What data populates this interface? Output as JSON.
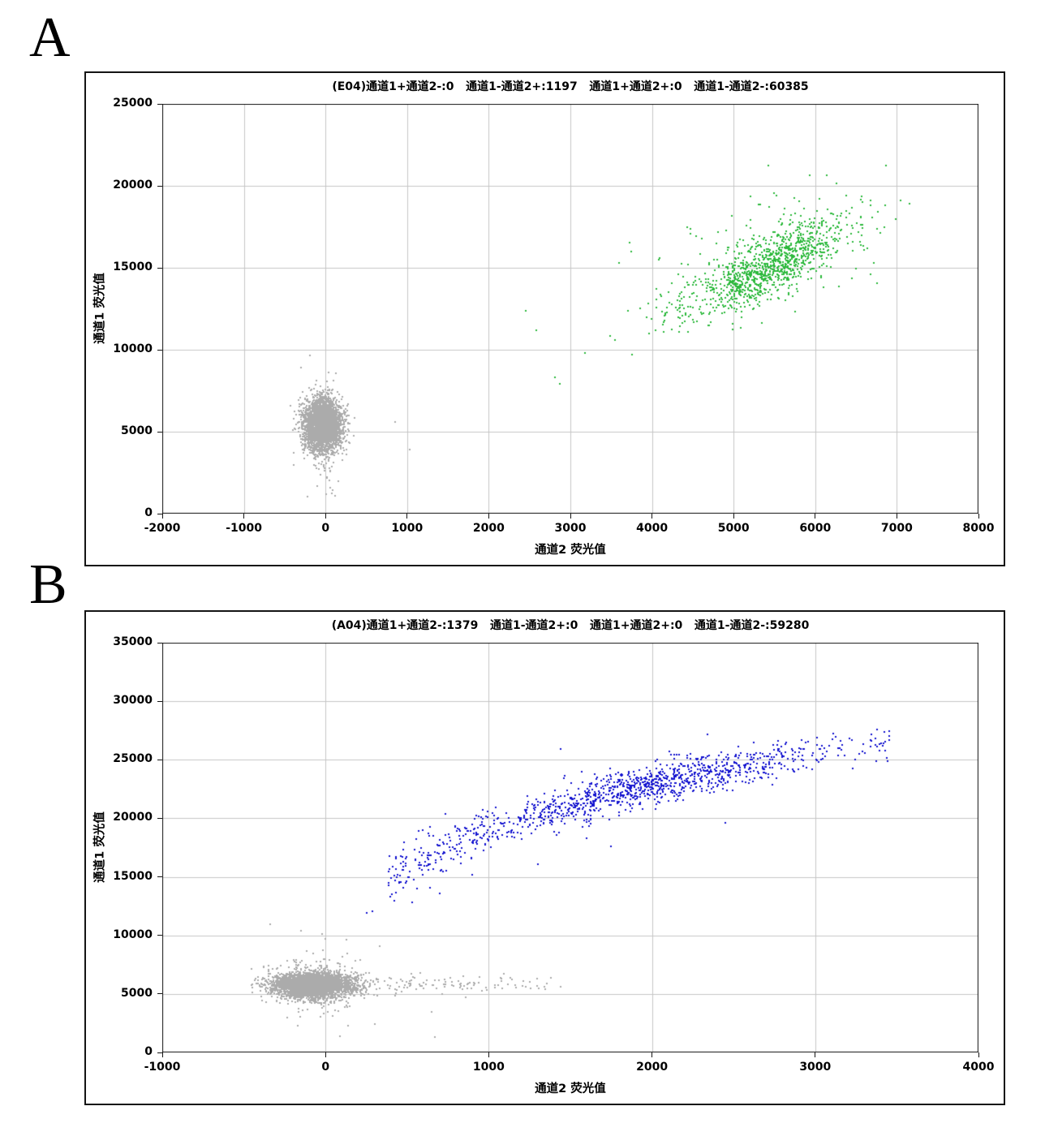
{
  "figure": {
    "background": "#ffffff",
    "panels": [
      {
        "letter": "A"
      },
      {
        "letter": "B"
      }
    ]
  },
  "style": {
    "grid_color": "#c6c6c6",
    "axis_color": "#141414",
    "palette": {
      "gray": "#ababab",
      "green": "#2cb93c",
      "blue": "#1212cf"
    }
  },
  "chart_data": [
    {
      "panel": "A",
      "type": "scatter",
      "title": "(E04)通道1+通道2-:0   通道1-通道2+:1197   通道1+通道2+:0   通道1-通道2-:60385",
      "xlabel": "通道2 荧光值",
      "ylabel": "通道1 荧光值",
      "xlim": [
        -2000,
        8000
      ],
      "ylim": [
        0,
        25000
      ],
      "x_ticks": [
        -2000,
        -1000,
        0,
        1000,
        2000,
        3000,
        4000,
        5000,
        6000,
        7000,
        8000
      ],
      "y_ticks": [
        0,
        5000,
        10000,
        15000,
        20000,
        25000
      ],
      "grid": true,
      "legend": null,
      "counts": {
        "ch1pos_ch2neg": 0,
        "ch1neg_ch2pos": 1197,
        "ch1pos_ch2pos": 0,
        "ch1neg_ch2neg": 60385
      },
      "seed": 42,
      "series": [
        {
          "name": "negative-droplets",
          "color": "gray",
          "shape": "gauss",
          "n": 3200,
          "cx": -40,
          "cy": 5400,
          "sx": 115,
          "sy": 760,
          "slope": 0
        },
        {
          "name": "negative-halo",
          "color": "gray",
          "shape": "gauss",
          "n": 170,
          "cx": -40,
          "cy": 5500,
          "sx": 150,
          "sy": 1350,
          "slope": 0
        },
        {
          "name": "negative-low-tail",
          "color": "gray",
          "shape": "vstrip",
          "n": 22,
          "cx": 30,
          "sx": 60,
          "y0": 1000,
          "y1": 3900
        },
        {
          "name": "negative-strays",
          "color": "gray",
          "shape": "points",
          "pts": [
            [
              850,
              5600
            ],
            [
              1030,
              3900
            ]
          ]
        },
        {
          "name": "positive-core",
          "color": "green",
          "shape": "gauss",
          "n": 980,
          "cx": 5480,
          "cy": 15150,
          "sx": 450,
          "sy": 950,
          "slope": 2.2
        },
        {
          "name": "positive-spread",
          "color": "green",
          "shape": "gauss",
          "n": 160,
          "cx": 5520,
          "cy": 16300,
          "sx": 700,
          "sy": 1800,
          "slope": 1.1
        },
        {
          "name": "positive-lower-tail",
          "color": "green",
          "shape": "gauss",
          "n": 70,
          "cx": 4350,
          "cy": 12700,
          "sx": 360,
          "sy": 800,
          "slope": 2.2
        },
        {
          "name": "positive-strays",
          "color": "green",
          "shape": "points",
          "pts": [
            [
              2450,
              12400
            ],
            [
              2580,
              11200
            ],
            [
              2810,
              8300
            ],
            [
              2870,
              7900
            ],
            [
              3180,
              9800
            ],
            [
              7050,
              19100
            ],
            [
              6850,
              17500
            ]
          ]
        }
      ]
    },
    {
      "panel": "B",
      "type": "scatter",
      "title": "(A04)通道1+通道2-:1379   通道1-通道2+:0   通道1+通道2+:0   通道1-通道2-:59280",
      "xlabel": "通道2 荧光值",
      "ylabel": "通道1 荧光值",
      "xlim": [
        -1000,
        4000
      ],
      "ylim": [
        0,
        35000
      ],
      "x_ticks": [
        -1000,
        0,
        1000,
        2000,
        3000,
        4000
      ],
      "y_ticks": [
        0,
        5000,
        10000,
        15000,
        20000,
        25000,
        30000,
        35000
      ],
      "grid": true,
      "legend": null,
      "counts": {
        "ch1pos_ch2neg": 1379,
        "ch1neg_ch2pos": 0,
        "ch1pos_ch2pos": 0,
        "ch1neg_ch2neg": 59280
      },
      "seed": 13,
      "series": [
        {
          "name": "negative-droplets",
          "color": "gray",
          "shape": "gauss",
          "n": 3800,
          "cx": -80,
          "cy": 5750,
          "sx": 115,
          "sy": 500,
          "slope": 0
        },
        {
          "name": "negative-halo",
          "color": "gray",
          "shape": "gauss",
          "n": 280,
          "cx": -60,
          "cy": 5800,
          "sx": 150,
          "sy": 1300,
          "slope": 0
        },
        {
          "name": "negative-tail-right",
          "color": "gray",
          "shape": "strip",
          "n": 150,
          "x0": 150,
          "x1": 1450,
          "xpow": 1.7,
          "cy": 5850,
          "sy": 420
        },
        {
          "name": "negative-strays",
          "color": "gray",
          "shape": "points",
          "pts": [
            [
              -338,
              10950
            ],
            [
              -150,
              10400
            ],
            [
              130,
              9600
            ],
            [
              90,
              1400
            ],
            [
              670,
              1350
            ],
            [
              650,
              3500
            ],
            [
              300,
              2400
            ]
          ]
        },
        {
          "name": "positive-arc",
          "color": "blue",
          "shape": "curve",
          "n": 1150,
          "cx": 1950,
          "sx": 620,
          "x0": 380,
          "x1": 3460,
          "a": 2982,
          "m": 0.268,
          "sy": 820
        },
        {
          "name": "positive-arc-left",
          "color": "blue",
          "shape": "strip",
          "n": 130,
          "x0": 380,
          "x1": 1000,
          "xpow": 1,
          "curve": {
            "a": 2982,
            "m": 0.268
          },
          "sy": 1250
        },
        {
          "name": "positive-low-strays",
          "color": "blue",
          "shape": "points",
          "pts": [
            [
              700,
              13600
            ],
            [
              900,
              15200
            ],
            [
              1300,
              16100
            ],
            [
              1750,
              17600
            ],
            [
              1600,
              18300
            ],
            [
              2450,
              19600
            ],
            [
              530,
              12800
            ],
            [
              640,
              14100
            ],
            [
              250,
              11900
            ],
            [
              285,
              12050
            ]
          ]
        },
        {
          "name": "positive-high-strays",
          "color": "blue",
          "shape": "points",
          "pts": [
            [
              2340,
              27200
            ],
            [
              1440,
              25900
            ],
            [
              2900,
              26000
            ],
            [
              3380,
              26100
            ]
          ]
        }
      ]
    }
  ]
}
